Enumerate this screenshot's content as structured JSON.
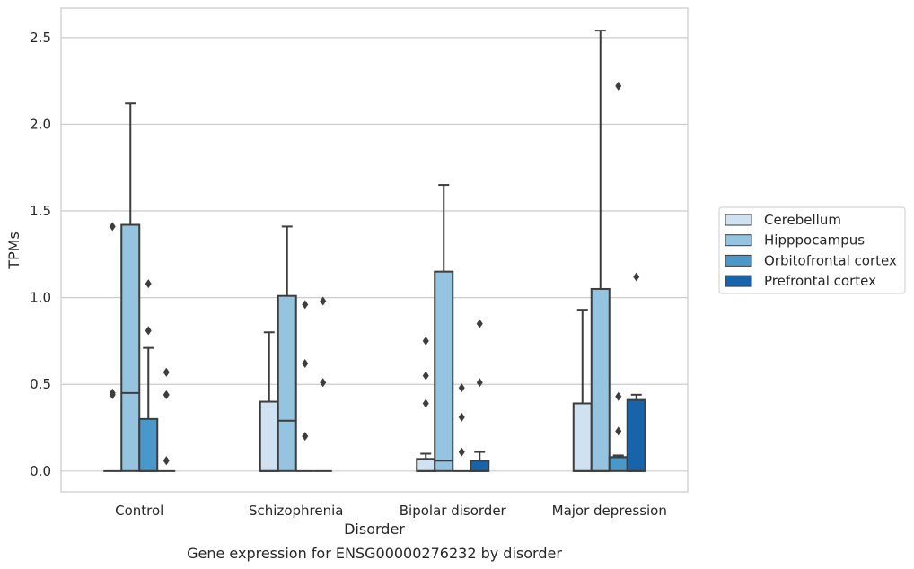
{
  "caption": "Gene expression for ENSG00000276232 by disorder",
  "chart_data": {
    "type": "box",
    "title": "",
    "xlabel": "Disorder",
    "ylabel": "TPMs",
    "ylim": [
      -0.12,
      2.67
    ],
    "yticks": [
      "0.0",
      "0.5",
      "1.0",
      "1.5",
      "2.0",
      "2.5"
    ],
    "ytick_values": [
      0,
      0.5,
      1.0,
      1.5,
      2.0,
      2.5
    ],
    "grid": "horizontal",
    "legend_position": "right",
    "categories": [
      "Control",
      "Schizophrenia",
      "Bipolar disorder",
      "Major depression"
    ],
    "series": [
      {
        "name": "Cerebellum",
        "color": "#d0e1f2",
        "boxes": [
          {
            "q1": 0,
            "median": 0,
            "q3": 0,
            "whisker_low": 0,
            "whisker_high": 0,
            "outliers": [
              0.44,
              0.45,
              1.41
            ]
          },
          {
            "q1": 0,
            "median": 0,
            "q3": 0.4,
            "whisker_low": 0,
            "whisker_high": 0.8,
            "outliers": []
          },
          {
            "q1": 0,
            "median": 0,
            "q3": 0.07,
            "whisker_low": 0,
            "whisker_high": 0.1,
            "outliers": [
              0.39,
              0.55,
              0.75
            ]
          },
          {
            "q1": 0,
            "median": 0,
            "q3": 0.39,
            "whisker_low": 0,
            "whisker_high": 0.93,
            "outliers": []
          }
        ]
      },
      {
        "name": "Hipppocampus",
        "color": "#94c4df",
        "boxes": [
          {
            "q1": 0,
            "median": 0.45,
            "q3": 1.42,
            "whisker_low": 0,
            "whisker_high": 2.12,
            "outliers": []
          },
          {
            "q1": 0,
            "median": 0.29,
            "q3": 1.01,
            "whisker_low": 0,
            "whisker_high": 1.41,
            "outliers": []
          },
          {
            "q1": 0,
            "median": 0.06,
            "q3": 1.15,
            "whisker_low": 0,
            "whisker_high": 1.65,
            "outliers": []
          },
          {
            "q1": 0,
            "median": 0,
            "q3": 1.05,
            "whisker_low": 0,
            "whisker_high": 2.54,
            "outliers": []
          }
        ]
      },
      {
        "name": "Orbitofrontal cortex",
        "color": "#4a98c9",
        "boxes": [
          {
            "q1": 0,
            "median": 0,
            "q3": 0.3,
            "whisker_low": 0,
            "whisker_high": 0.71,
            "outliers": [
              0.81,
              1.08
            ]
          },
          {
            "q1": 0,
            "median": 0,
            "q3": 0,
            "whisker_low": 0,
            "whisker_high": 0,
            "outliers": [
              0.2,
              0.62,
              0.96
            ]
          },
          {
            "q1": 0,
            "median": 0,
            "q3": 0,
            "whisker_low": 0,
            "whisker_high": 0,
            "outliers": [
              0.11,
              0.31,
              0.48
            ]
          },
          {
            "q1": 0,
            "median": 0.08,
            "q3": 0.08,
            "whisker_low": 0,
            "whisker_high": 0.09,
            "outliers": [
              0.23,
              0.43,
              2.22
            ]
          }
        ]
      },
      {
        "name": "Prefrontal cortex",
        "color": "#1764ab",
        "boxes": [
          {
            "q1": 0,
            "median": 0,
            "q3": 0,
            "whisker_low": 0,
            "whisker_high": 0,
            "outliers": [
              0.06,
              0.44,
              0.57
            ]
          },
          {
            "q1": 0,
            "median": 0,
            "q3": 0,
            "whisker_low": 0,
            "whisker_high": 0,
            "outliers": [
              0.51,
              0.98
            ]
          },
          {
            "q1": 0,
            "median": 0,
            "q3": 0.06,
            "whisker_low": 0,
            "whisker_high": 0.11,
            "outliers": [
              0.51,
              0.85
            ]
          },
          {
            "q1": 0,
            "median": 0,
            "q3": 0.41,
            "whisker_low": 0,
            "whisker_high": 0.44,
            "outliers": [
              1.12
            ]
          }
        ]
      }
    ]
  }
}
